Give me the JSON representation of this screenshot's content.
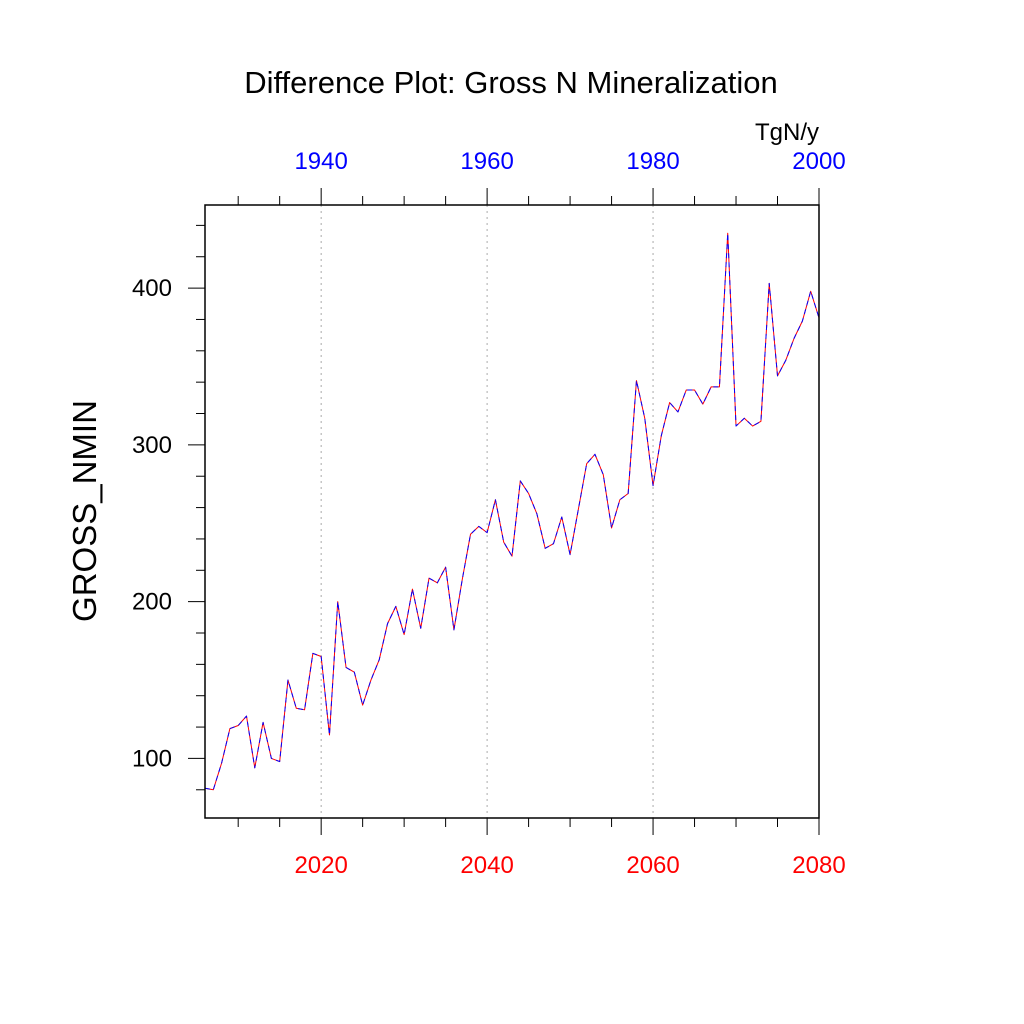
{
  "chart_data": {
    "type": "line",
    "title": "Difference Plot: Gross N Mineralization",
    "units": "TgN/y",
    "ylabel": "GROSS_NMIN",
    "xlabel": "",
    "grid": "vertical-dotted",
    "colors": {
      "bottom_axis": "#ff0000",
      "top_axis": "#0000ff",
      "series_a": "#ff0000",
      "series_b": "#0000ff",
      "grid": "#aaaaaa"
    },
    "xlim": [
      2006,
      2080
    ],
    "ylim": [
      62,
      453
    ],
    "top_xlim": [
      1926,
      2000
    ],
    "x_ticks": [
      "2020",
      "2040",
      "2060",
      "2080"
    ],
    "top_x_ticks": [
      "1940",
      "1960",
      "1980",
      "2000"
    ],
    "y_ticks": [
      "100",
      "200",
      "300",
      "400"
    ],
    "x": [
      2006,
      2007,
      2008,
      2009,
      2010,
      2011,
      2012,
      2013,
      2014,
      2015,
      2016,
      2017,
      2018,
      2019,
      2020,
      2021,
      2022,
      2023,
      2024,
      2025,
      2026,
      2027,
      2028,
      2029,
      2030,
      2031,
      2032,
      2033,
      2034,
      2035,
      2036,
      2037,
      2038,
      2039,
      2040,
      2041,
      2042,
      2043,
      2044,
      2045,
      2046,
      2047,
      2048,
      2049,
      2050,
      2051,
      2052,
      2053,
      2054,
      2055,
      2056,
      2057,
      2058,
      2059,
      2060,
      2061,
      2062,
      2063,
      2064,
      2065,
      2066,
      2067,
      2068,
      2069,
      2070,
      2071,
      2072,
      2073,
      2074,
      2075,
      2076,
      2077,
      2078,
      2079,
      2080
    ],
    "series": [
      {
        "values": [
          81,
          80,
          97,
          119,
          121,
          127,
          94,
          123,
          100,
          98,
          150,
          132,
          131,
          167,
          165,
          115,
          200,
          158,
          155,
          134,
          150,
          163,
          186,
          197,
          179,
          208,
          183,
          215,
          212,
          222,
          182,
          214,
          243,
          248,
          244,
          265,
          238,
          229,
          277,
          269,
          256,
          234,
          237,
          254,
          230,
          259,
          288,
          294,
          281,
          247,
          265,
          269,
          341,
          317,
          274,
          306,
          327,
          321,
          335,
          335,
          326,
          337,
          337,
          435,
          312,
          317,
          312,
          315,
          403,
          344,
          354,
          368,
          379,
          398,
          381
        ]
      },
      {
        "values": [
          81,
          80,
          97,
          119,
          121,
          127,
          94,
          123,
          100,
          98,
          150,
          132,
          131,
          167,
          165,
          115,
          200,
          158,
          155,
          134,
          150,
          163,
          186,
          197,
          179,
          208,
          183,
          215,
          212,
          222,
          182,
          214,
          243,
          248,
          244,
          265,
          238,
          229,
          277,
          269,
          256,
          234,
          237,
          254,
          230,
          259,
          288,
          294,
          281,
          247,
          265,
          269,
          341,
          317,
          274,
          306,
          327,
          321,
          335,
          335,
          326,
          337,
          337,
          435,
          312,
          317,
          312,
          315,
          403,
          344,
          354,
          368,
          379,
          398,
          381
        ]
      }
    ]
  }
}
